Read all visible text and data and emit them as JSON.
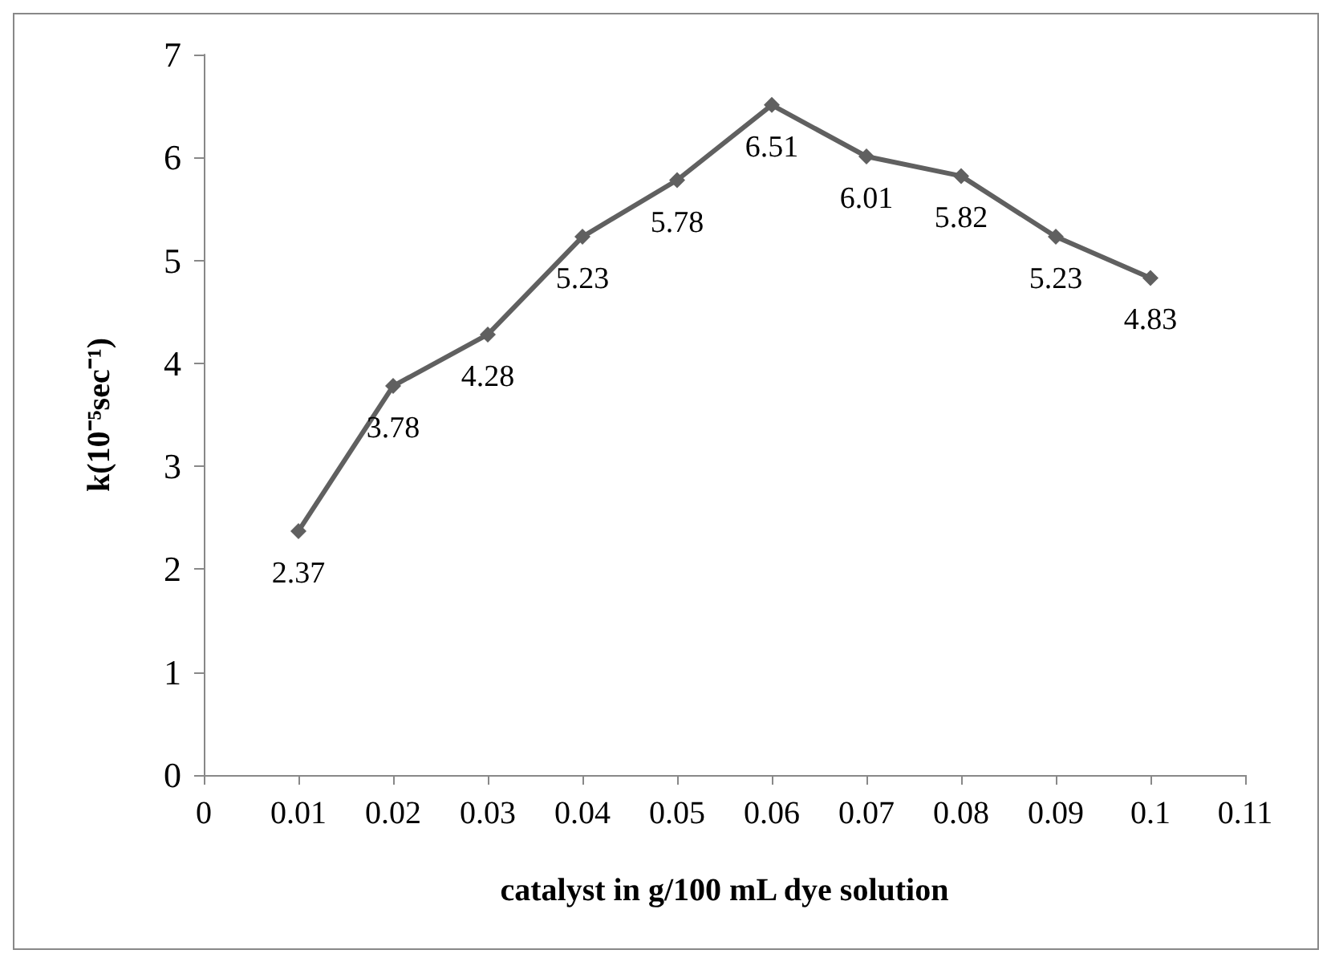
{
  "chart_data": {
    "type": "line",
    "xlabel": "catalyst in g/100 mL dye solution",
    "ylabel": "k(10⁻⁵sec⁻¹)",
    "x": [
      0.01,
      0.02,
      0.03,
      0.04,
      0.05,
      0.06,
      0.07,
      0.08,
      0.09,
      0.1
    ],
    "series": [
      {
        "color": "#606060",
        "values": [
          2.37,
          3.78,
          4.28,
          5.23,
          5.78,
          6.51,
          6.01,
          5.82,
          5.23,
          4.83
        ]
      }
    ],
    "xlim": [
      0,
      0.11
    ],
    "xticks": [
      0,
      0.01,
      0.02,
      0.03,
      0.04,
      0.05,
      0.06,
      0.07,
      0.08,
      0.09,
      0.1,
      0.11
    ],
    "ylim": [
      0,
      7
    ],
    "yticks": [
      0,
      1,
      2,
      3,
      4,
      5,
      6,
      7
    ],
    "data_labels": true,
    "grid": false,
    "marker": "diamond",
    "line_style": "solid"
  }
}
